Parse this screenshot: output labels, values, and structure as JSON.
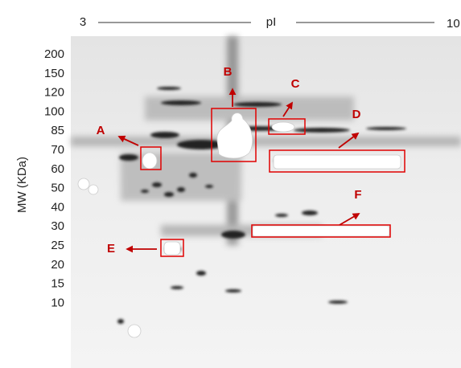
{
  "pi_axis": {
    "left": "3",
    "title": "pI",
    "right": "10"
  },
  "mw_axis": {
    "title": "MW (KDa)",
    "labels": [
      "200",
      "150",
      "120",
      "100",
      "85",
      "70",
      "60",
      "50",
      "40",
      "30",
      "25",
      "20",
      "15",
      "10"
    ]
  },
  "annotations": [
    "A",
    "B",
    "C",
    "D",
    "E",
    "F"
  ]
}
